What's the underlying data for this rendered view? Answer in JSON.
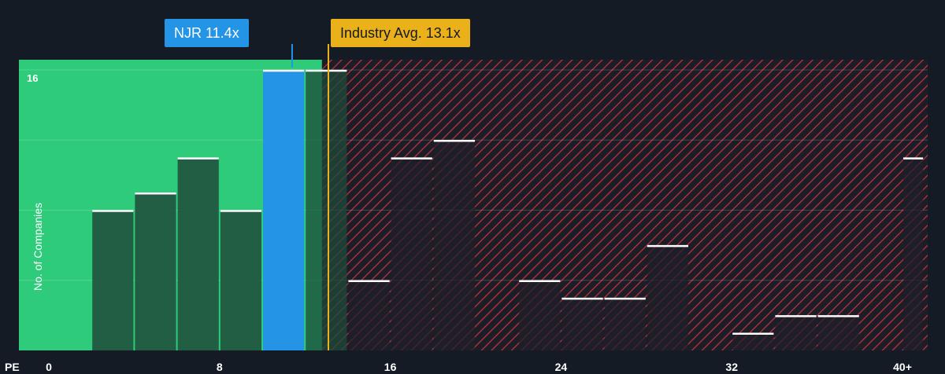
{
  "chart_data": {
    "type": "bar",
    "xlabel": "PE",
    "ylabel": "No. of Companies",
    "x_ticks": [
      "0",
      "8",
      "16",
      "24",
      "32",
      "40+"
    ],
    "x_tick_values": [
      0,
      8,
      16,
      24,
      32,
      40
    ],
    "y_ticks": [
      "16"
    ],
    "xlim": [
      -2,
      41
    ],
    "ylim": [
      0,
      16
    ],
    "bins": [
      {
        "start": 2,
        "end": 4,
        "count": 8
      },
      {
        "start": 4,
        "end": 6,
        "count": 9
      },
      {
        "start": 6,
        "end": 8,
        "count": 11
      },
      {
        "start": 8,
        "end": 10,
        "count": 8
      },
      {
        "start": 10,
        "end": 12,
        "count": 16
      },
      {
        "start": 12,
        "end": 14,
        "count": 16
      },
      {
        "start": 14,
        "end": 16,
        "count": 4
      },
      {
        "start": 16,
        "end": 18,
        "count": 11
      },
      {
        "start": 18,
        "end": 20,
        "count": 12
      },
      {
        "start": 22,
        "end": 24,
        "count": 4
      },
      {
        "start": 24,
        "end": 26,
        "count": 3
      },
      {
        "start": 26,
        "end": 28,
        "count": 3
      },
      {
        "start": 28,
        "end": 30,
        "count": 6
      },
      {
        "start": 32,
        "end": 34,
        "count": 1
      },
      {
        "start": 34,
        "end": 36,
        "count": 2
      },
      {
        "start": 36,
        "end": 38,
        "count": 2
      },
      {
        "start": 40,
        "end": 41,
        "count": 11
      }
    ],
    "highlight_bin_start": 10,
    "company": {
      "label": "NJR 11.4x",
      "value": 11.4
    },
    "industry": {
      "label": "Industry Avg. 13.1x",
      "value": 13.1
    },
    "fair_zone_end": 12.8,
    "grid": true,
    "colors": {
      "background": "#151b24",
      "fair_zone": "#2ecc7a",
      "bar": "#1e4a3a",
      "bar_in_expensive": "#1e1f2a",
      "company": "#2394e6",
      "industry": "#eab11a",
      "hatch": "#b8343c"
    }
  }
}
